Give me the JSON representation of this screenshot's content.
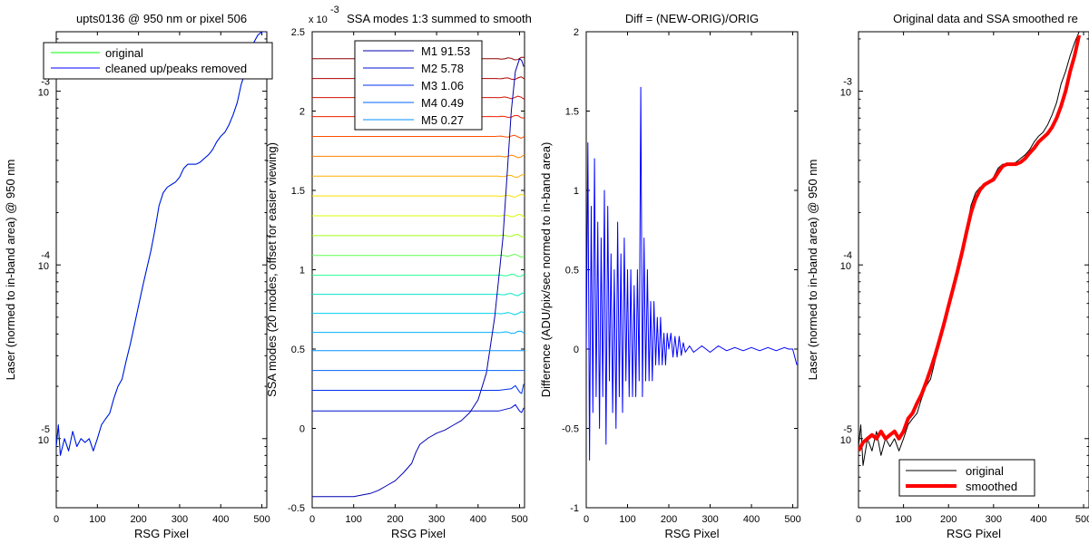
{
  "chart_data": [
    {
      "type": "line",
      "title": "upts0136 @ 950 nm or pixel 506",
      "xlabel": "RSG Pixel",
      "ylabel": "Laser (normed to in-band area) @ 950 nm",
      "xlim": [
        0,
        512
      ],
      "ylim": [
        4e-06,
        0.0022
      ],
      "yscale": "log",
      "x_ticks": [
        "0",
        "100",
        "200",
        "300",
        "400",
        "500"
      ],
      "y_ticks": [
        "10",
        "10",
        "10"
      ],
      "y_tick_exponents": [
        "-5",
        "-4",
        "-3"
      ],
      "legend_position": "top-left",
      "series": [
        {
          "name": "original",
          "color": "#00ff00",
          "x": [
            0,
            5,
            10,
            20,
            30,
            40,
            50,
            60,
            70,
            80,
            90,
            100,
            110,
            120,
            130,
            140,
            150,
            160,
            170,
            180,
            190,
            200,
            210,
            220,
            230,
            240,
            250,
            260,
            270,
            280,
            290,
            300,
            310,
            320,
            330,
            340,
            350,
            360,
            370,
            380,
            390,
            400,
            410,
            420,
            430,
            440,
            450,
            460,
            470,
            480,
            490,
            500,
            510
          ],
          "y": [
            9e-06,
            1.2e-05,
            8e-06,
            1e-05,
            8.5e-06,
            1.1e-05,
            9e-06,
            1e-05,
            9.5e-06,
            1e-05,
            8.5e-06,
            1e-05,
            1.2e-05,
            1.3e-05,
            1.4e-05,
            1.7e-05,
            2e-05,
            2.2e-05,
            2.8e-05,
            3.5e-05,
            4.5e-05,
            5.8e-05,
            7.5e-05,
            9.5e-05,
            0.00012,
            0.00016,
            0.00022,
            0.00026,
            0.00028,
            0.00029,
            0.0003,
            0.00032,
            0.00036,
            0.00038,
            0.00038,
            0.00038,
            0.00039,
            0.00041,
            0.00043,
            0.00046,
            0.00051,
            0.00055,
            0.00058,
            0.00064,
            0.00073,
            0.00086,
            0.0011,
            0.0013,
            0.0016,
            0.0019,
            0.0021,
            0.0022,
            0.0022
          ]
        },
        {
          "name": "cleaned up/peaks removed",
          "color": "#0000ff",
          "x": [
            0,
            5,
            10,
            20,
            30,
            40,
            50,
            60,
            70,
            80,
            90,
            100,
            110,
            120,
            130,
            140,
            150,
            160,
            170,
            180,
            190,
            200,
            210,
            220,
            230,
            240,
            250,
            260,
            270,
            280,
            290,
            300,
            310,
            320,
            330,
            340,
            350,
            360,
            370,
            380,
            390,
            400,
            410,
            420,
            430,
            440,
            450,
            460,
            470,
            480,
            490,
            500,
            510
          ],
          "y": [
            9e-06,
            1.2e-05,
            8e-06,
            1e-05,
            8.5e-06,
            1.1e-05,
            9e-06,
            1e-05,
            9.5e-06,
            1e-05,
            8.5e-06,
            1e-05,
            1.2e-05,
            1.3e-05,
            1.4e-05,
            1.7e-05,
            2e-05,
            2.2e-05,
            2.8e-05,
            3.5e-05,
            4.5e-05,
            5.8e-05,
            7.5e-05,
            9.5e-05,
            0.00012,
            0.00016,
            0.00022,
            0.00026,
            0.00028,
            0.00029,
            0.0003,
            0.00032,
            0.00036,
            0.00038,
            0.00038,
            0.00038,
            0.00039,
            0.00041,
            0.00043,
            0.00046,
            0.00051,
            0.00055,
            0.00058,
            0.00064,
            0.00073,
            0.00086,
            0.0011,
            0.0013,
            0.0016,
            0.0019,
            0.0021,
            0.0022,
            0.0022
          ]
        }
      ]
    },
    {
      "type": "line",
      "title": "SSA modes 1:3 summed to smooth",
      "ylabel": "SSA modes (20 modes, offset for easier viewing)",
      "xlabel": "RSG Pixel",
      "xlim": [
        0,
        512
      ],
      "ylim": [
        -0.5,
        2.5
      ],
      "y_multiplier": "x 10",
      "y_multiplier_exponent": "-3",
      "x_ticks": [
        "0",
        "100",
        "200",
        "300",
        "400",
        "500"
      ],
      "y_ticks": [
        "-0.5",
        "0",
        "0.5",
        "1",
        "1.5",
        "2",
        "2.5"
      ],
      "legend_position": "top-center",
      "series": [
        {
          "name": "M1 91.53",
          "color": "#0000b0",
          "x": [
            0,
            20,
            40,
            60,
            80,
            100,
            120,
            140,
            160,
            180,
            200,
            220,
            240,
            250,
            260,
            280,
            300,
            320,
            340,
            360,
            380,
            400,
            420,
            440,
            460,
            470,
            480,
            490,
            500,
            505,
            510
          ],
          "y": [
            -0.43,
            -0.43,
            -0.43,
            -0.43,
            -0.43,
            -0.43,
            -0.42,
            -0.41,
            -0.39,
            -0.36,
            -0.33,
            -0.28,
            -0.22,
            -0.15,
            -0.1,
            -0.06,
            -0.03,
            -0.01,
            0.02,
            0.05,
            0.1,
            0.18,
            0.35,
            0.7,
            1.2,
            1.6,
            2.0,
            2.25,
            2.33,
            2.32,
            2.28
          ]
        },
        {
          "name": "M2 5.78",
          "color": "#0010d0",
          "x": [
            0,
            100,
            200,
            300,
            400,
            450,
            480,
            490,
            500,
            505,
            510
          ],
          "y": [
            0.11,
            0.11,
            0.11,
            0.11,
            0.11,
            0.11,
            0.13,
            0.15,
            0.11,
            0.1,
            0.13
          ]
        },
        {
          "name": "M3 1.06",
          "color": "#0030f0",
          "x": [
            0,
            100,
            200,
            300,
            400,
            450,
            480,
            490,
            500,
            505,
            510
          ],
          "y": [
            0.24,
            0.24,
            0.24,
            0.24,
            0.24,
            0.24,
            0.25,
            0.27,
            0.23,
            0.22,
            0.28
          ]
        },
        {
          "name": "M4 0.49",
          "color": "#0060ff",
          "x": [
            0,
            512
          ],
          "y": [
            0.365,
            0.365
          ]
        },
        {
          "name": "M5 0.27",
          "color": "#0090ff",
          "x": [
            0,
            512
          ],
          "y": [
            0.49,
            0.49
          ]
        }
      ],
      "offset_mode_levels": [
        0.605,
        0.725,
        0.845,
        0.965,
        1.09,
        1.215,
        1.34,
        1.465,
        1.59,
        1.715,
        1.84,
        1.965,
        2.085,
        2.205,
        2.33
      ],
      "offset_mode_colors": [
        "#00b0ff",
        "#00d0ee",
        "#00e8c8",
        "#20ff90",
        "#60ff50",
        "#a0ff10",
        "#d8ff00",
        "#ffe000",
        "#ffb000",
        "#ff8000",
        "#ff5000",
        "#f02000",
        "#d01000",
        "#b00000",
        "#900000"
      ]
    },
    {
      "type": "line",
      "title": "Diff = (NEW-ORIG)/ORIG",
      "xlabel": "RSG Pixel",
      "ylabel": "Difference (ADU/pix/sec normed to in-band area)",
      "xlim": [
        0,
        512
      ],
      "ylim": [
        -1,
        2
      ],
      "x_ticks": [
        "0",
        "100",
        "200",
        "300",
        "400",
        "500"
      ],
      "y_ticks": [
        "-1",
        "-0.5",
        "0",
        "0.5",
        "1",
        "1.5",
        "2"
      ],
      "series": [
        {
          "name": "",
          "color": "#0000ff",
          "x": [
            0,
            4,
            8,
            12,
            16,
            20,
            24,
            28,
            32,
            36,
            40,
            44,
            48,
            52,
            56,
            60,
            64,
            68,
            72,
            76,
            80,
            84,
            88,
            92,
            96,
            100,
            104,
            108,
            112,
            116,
            120,
            124,
            128,
            132,
            136,
            140,
            144,
            148,
            152,
            156,
            160,
            164,
            168,
            172,
            176,
            180,
            184,
            188,
            192,
            196,
            200,
            205,
            210,
            215,
            220,
            225,
            230,
            235,
            240,
            250,
            260,
            280,
            300,
            320,
            340,
            360,
            380,
            400,
            420,
            440,
            460,
            480,
            490,
            500,
            510
          ],
          "y": [
            0,
            1.3,
            -0.7,
            0.9,
            -0.4,
            1.2,
            -0.3,
            0.8,
            -0.5,
            0.7,
            -0.3,
            1.0,
            -0.6,
            0.9,
            -0.2,
            0.6,
            -0.4,
            0.5,
            -0.5,
            0.8,
            -0.3,
            0.6,
            -0.4,
            0.7,
            -0.2,
            0.5,
            -0.3,
            0.5,
            -0.3,
            0.4,
            -0.3,
            0.5,
            -0.2,
            1.65,
            -0.3,
            0.7,
            -0.2,
            0.5,
            -0.2,
            0.3,
            -0.2,
            0.3,
            -0.1,
            0.2,
            -0.1,
            0.2,
            -0.1,
            0.1,
            -0.1,
            0.1,
            0,
            0.1,
            -0.05,
            0.08,
            -0.05,
            0.08,
            -0.04,
            0.04,
            -0.02,
            0.02,
            -0.02,
            0.02,
            -0.02,
            0.02,
            -0.01,
            0.01,
            -0.01,
            0.01,
            -0.01,
            0.01,
            -0.01,
            0.01,
            0,
            0,
            -0.1
          ]
        }
      ]
    },
    {
      "type": "line",
      "title": "Original data and SSA smoothed re",
      "xlabel": "RSG Pixel",
      "ylabel": "Laser (normed to in-band area) @ 950 nm",
      "xlim": [
        0,
        512
      ],
      "ylim": [
        4e-06,
        0.0022
      ],
      "yscale": "log",
      "x_ticks": [
        "0",
        "100",
        "200",
        "300",
        "400",
        "500"
      ],
      "y_ticks": [
        "10",
        "10",
        "10"
      ],
      "y_tick_exponents": [
        "-5",
        "-4",
        "-3"
      ],
      "legend_position": "bottom-right",
      "series": [
        {
          "name": "original",
          "color": "#000000",
          "x": [
            0,
            5,
            10,
            20,
            30,
            40,
            50,
            60,
            70,
            80,
            90,
            100,
            110,
            120,
            130,
            140,
            150,
            160,
            170,
            180,
            190,
            200,
            210,
            220,
            230,
            240,
            250,
            260,
            270,
            280,
            290,
            300,
            310,
            320,
            330,
            340,
            350,
            360,
            370,
            380,
            390,
            400,
            410,
            420,
            430,
            440,
            450,
            460,
            470,
            480,
            490
          ],
          "y": [
            9e-06,
            1.2e-05,
            7e-06,
            1e-05,
            8.5e-06,
            1.1e-05,
            8e-06,
            1e-05,
            9e-06,
            1e-05,
            8.5e-06,
            1e-05,
            1.2e-05,
            1.3e-05,
            1.4e-05,
            1.7e-05,
            2e-05,
            2.2e-05,
            2.8e-05,
            3.5e-05,
            4.5e-05,
            5.8e-05,
            7.5e-05,
            9.5e-05,
            0.00012,
            0.00016,
            0.00022,
            0.00026,
            0.00028,
            0.00029,
            0.0003,
            0.00032,
            0.00036,
            0.00038,
            0.00038,
            0.00038,
            0.00039,
            0.00041,
            0.00043,
            0.00046,
            0.00051,
            0.00055,
            0.00058,
            0.00064,
            0.00073,
            0.00086,
            0.0011,
            0.0013,
            0.0016,
            0.0019,
            0.0022
          ]
        },
        {
          "name": "smoothed",
          "color": "#ff0000",
          "x": [
            0,
            10,
            20,
            30,
            40,
            50,
            60,
            70,
            80,
            90,
            100,
            110,
            120,
            130,
            140,
            150,
            160,
            170,
            180,
            190,
            200,
            210,
            220,
            230,
            240,
            250,
            260,
            270,
            280,
            290,
            300,
            310,
            320,
            330,
            340,
            350,
            360,
            370,
            380,
            390,
            400,
            410,
            420,
            430,
            440,
            450,
            460,
            470,
            480,
            490
          ],
          "y": [
            8.5e-06,
            9.5e-06,
            1e-05,
            1.05e-05,
            1e-05,
            1.1e-05,
            1e-05,
            1.05e-05,
            1.1e-05,
            1e-05,
            1.1e-05,
            1.3e-05,
            1.4e-05,
            1.6e-05,
            1.8e-05,
            2.1e-05,
            2.5e-05,
            3e-05,
            3.7e-05,
            4.6e-05,
            5.8e-05,
            7.3e-05,
            9.2e-05,
            0.000118,
            0.000155,
            0.0002,
            0.00024,
            0.00027,
            0.00029,
            0.0003,
            0.00031,
            0.00034,
            0.00037,
            0.00038,
            0.00038,
            0.00038,
            0.00039,
            0.00041,
            0.00044,
            0.00047,
            0.00051,
            0.00054,
            0.00057,
            0.00062,
            0.0007,
            0.00082,
            0.001,
            0.0013,
            0.0016,
            0.0021
          ]
        }
      ]
    }
  ]
}
